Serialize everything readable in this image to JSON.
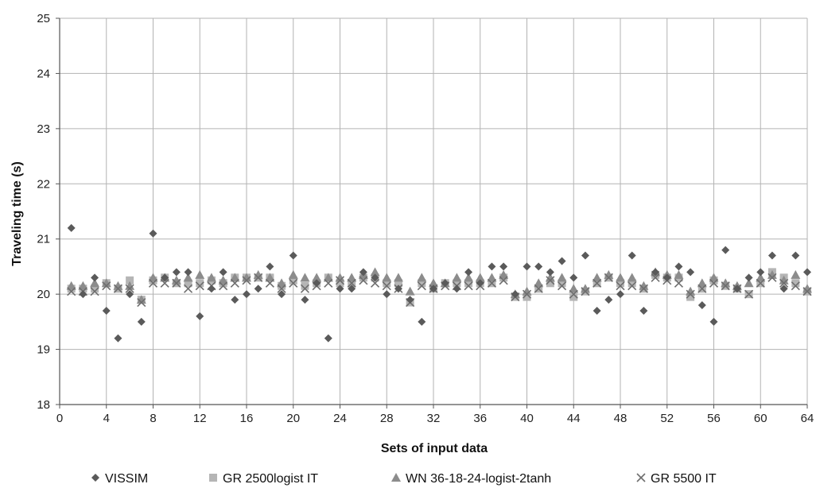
{
  "chart_data": {
    "type": "scatter",
    "xlabel": "Sets of input data",
    "ylabel": "Traveling time (s)",
    "xlim": [
      0,
      64
    ],
    "ylim": [
      18,
      25
    ],
    "x_ticks": [
      0,
      4,
      8,
      12,
      16,
      20,
      24,
      28,
      32,
      36,
      40,
      44,
      48,
      52,
      56,
      60,
      64
    ],
    "y_ticks": [
      18,
      19,
      20,
      21,
      22,
      23,
      24,
      25
    ],
    "grid": true,
    "legend_position": "bottom",
    "x": [
      1,
      2,
      3,
      4,
      5,
      6,
      7,
      8,
      9,
      10,
      11,
      12,
      13,
      14,
      15,
      16,
      17,
      18,
      19,
      20,
      21,
      22,
      23,
      24,
      25,
      26,
      27,
      28,
      29,
      30,
      31,
      32,
      33,
      34,
      35,
      36,
      37,
      38,
      39,
      40,
      41,
      42,
      43,
      44,
      45,
      46,
      47,
      48,
      49,
      50,
      51,
      52,
      53,
      54,
      55,
      56,
      57,
      58,
      59,
      60,
      61,
      62,
      63,
      64
    ],
    "series": [
      {
        "name": "VISSIM",
        "marker": "diamond",
        "color": "#5a5a5a",
        "values": [
          21.2,
          20.0,
          20.3,
          19.7,
          19.2,
          20.0,
          19.5,
          21.1,
          20.3,
          20.4,
          20.4,
          19.6,
          20.1,
          20.4,
          19.9,
          20.0,
          20.1,
          20.5,
          20.0,
          20.7,
          19.9,
          20.2,
          19.2,
          20.1,
          20.1,
          20.4,
          20.3,
          20.0,
          20.1,
          19.9,
          19.5,
          20.1,
          20.2,
          20.1,
          20.4,
          20.2,
          20.5,
          20.5,
          20.0,
          20.5,
          20.5,
          20.4,
          20.6,
          20.3,
          20.7,
          19.7,
          19.9,
          20.0,
          20.7,
          19.7,
          20.4,
          20.3,
          20.5,
          20.4,
          19.8,
          19.5,
          20.8,
          20.1,
          20.3,
          20.4,
          20.7,
          20.1,
          20.7,
          20.4
        ]
      },
      {
        "name": "GR 2500logist IT",
        "marker": "square",
        "color": "#b5b5b5",
        "values": [
          20.1,
          20.1,
          20.1,
          20.2,
          20.1,
          20.25,
          19.9,
          20.25,
          20.3,
          20.2,
          20.2,
          20.2,
          20.25,
          20.2,
          20.3,
          20.3,
          20.3,
          20.3,
          20.15,
          20.25,
          20.15,
          20.2,
          20.3,
          20.2,
          20.2,
          20.3,
          20.3,
          20.2,
          20.2,
          19.85,
          20.2,
          20.1,
          20.2,
          20.2,
          20.2,
          20.2,
          20.2,
          20.3,
          19.95,
          19.95,
          20.1,
          20.2,
          20.2,
          19.95,
          20.05,
          20.2,
          20.3,
          20.2,
          20.2,
          20.1,
          20.35,
          20.3,
          20.3,
          19.95,
          20.1,
          20.25,
          20.15,
          20.1,
          20.0,
          20.2,
          20.4,
          20.3,
          20.2,
          20.05
        ]
      },
      {
        "name": "WN 36-18-24-logist-2tanh",
        "marker": "triangle",
        "color": "#8c8c8c",
        "values": [
          20.15,
          20.15,
          20.2,
          20.2,
          20.15,
          20.15,
          19.9,
          20.3,
          20.3,
          20.25,
          20.3,
          20.35,
          20.3,
          20.25,
          20.3,
          20.3,
          20.35,
          20.3,
          20.2,
          20.35,
          20.3,
          20.3,
          20.3,
          20.3,
          20.3,
          20.35,
          20.4,
          20.3,
          20.3,
          20.05,
          20.3,
          20.2,
          20.2,
          20.3,
          20.3,
          20.3,
          20.3,
          20.35,
          20.0,
          20.05,
          20.2,
          20.3,
          20.3,
          20.1,
          20.1,
          20.3,
          20.35,
          20.3,
          20.3,
          20.15,
          20.4,
          20.35,
          20.35,
          20.05,
          20.2,
          20.3,
          20.2,
          20.15,
          20.2,
          20.3,
          20.35,
          20.25,
          20.35,
          20.1
        ]
      },
      {
        "name": "GR 5500 IT",
        "marker": "x",
        "color": "#6e6e6e",
        "values": [
          20.05,
          20.05,
          20.05,
          20.15,
          20.1,
          20.1,
          19.85,
          20.2,
          20.2,
          20.2,
          20.1,
          20.15,
          20.15,
          20.15,
          20.2,
          20.25,
          20.3,
          20.2,
          20.1,
          20.2,
          20.1,
          20.15,
          20.2,
          20.25,
          20.2,
          20.25,
          20.2,
          20.15,
          20.1,
          19.85,
          20.15,
          20.1,
          20.15,
          20.15,
          20.15,
          20.15,
          20.2,
          20.25,
          19.95,
          20.0,
          20.1,
          20.25,
          20.15,
          20.0,
          20.05,
          20.2,
          20.3,
          20.15,
          20.15,
          20.1,
          20.3,
          20.25,
          20.2,
          20.0,
          20.1,
          20.2,
          20.15,
          20.1,
          20.0,
          20.2,
          20.3,
          20.2,
          20.15,
          20.05
        ]
      }
    ]
  }
}
